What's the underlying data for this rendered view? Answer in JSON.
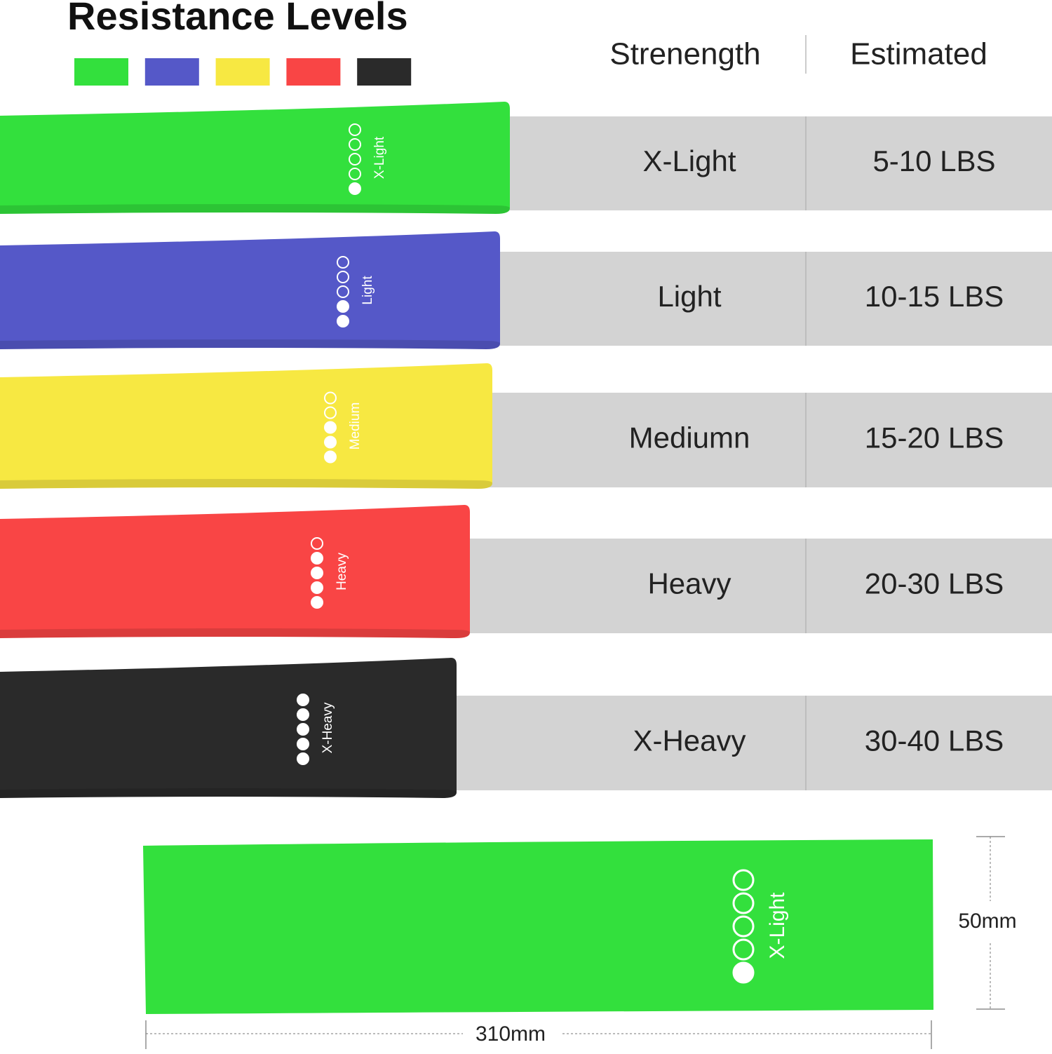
{
  "header": {
    "title": "Resistance Levels",
    "strength_heading": "Strenength",
    "estimated_heading": "Estimated"
  },
  "rows": [
    {
      "band_label": "X-Light",
      "strength": "X-Light",
      "estimated": "5-10 LBS",
      "color": "#33e03d"
    },
    {
      "band_label": "Light",
      "strength": "Light",
      "estimated": "10-15 LBS",
      "color": "#5558c8"
    },
    {
      "band_label": "Medium",
      "strength": "Mediumn",
      "estimated": "15-20 LBS",
      "color": "#f7e842"
    },
    {
      "band_label": "Heavy",
      "strength": "Heavy",
      "estimated": "20-30 LBS",
      "color": "#f94545"
    },
    {
      "band_label": "X-Heavy",
      "strength": "X-Heavy",
      "estimated": "30-40 LBS",
      "color": "#2a2a2a"
    }
  ],
  "size_band": {
    "label": "X-Light",
    "width_label": "50mm",
    "length_label": "310mm"
  }
}
